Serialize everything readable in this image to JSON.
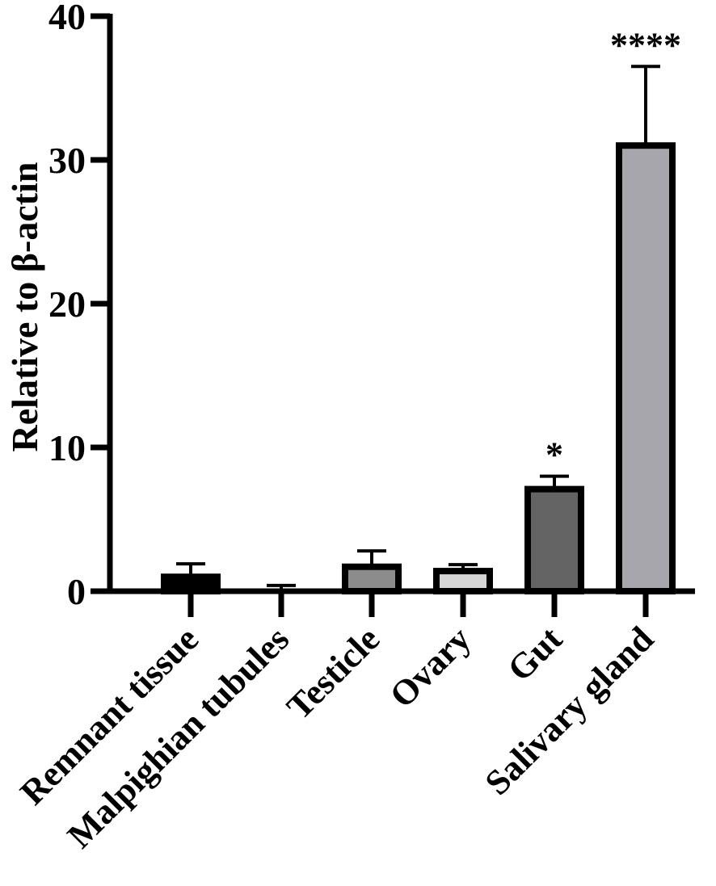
{
  "chart_data": {
    "type": "bar",
    "title": "",
    "xlabel": "",
    "ylabel": "Relative to β-actin",
    "ylim": [
      0,
      40
    ],
    "yticks": [
      0,
      10,
      20,
      30,
      40
    ],
    "grid": false,
    "categories": [
      "Remnant tissue",
      "Malpighian tubules",
      "Testicle",
      "Ovary",
      "Gut",
      "Salivary gland"
    ],
    "values": [
      1.0,
      0.05,
      1.7,
      1.4,
      7.1,
      31.0
    ],
    "error": [
      0.9,
      0.35,
      1.1,
      0.45,
      0.9,
      5.5
    ],
    "significance": [
      "",
      "",
      "",
      "",
      "*",
      "****"
    ],
    "colors": [
      "#000000",
      "#000000",
      "#8c8c8c",
      "#d6d6d6",
      "#646464",
      "#a6a6ac"
    ]
  }
}
